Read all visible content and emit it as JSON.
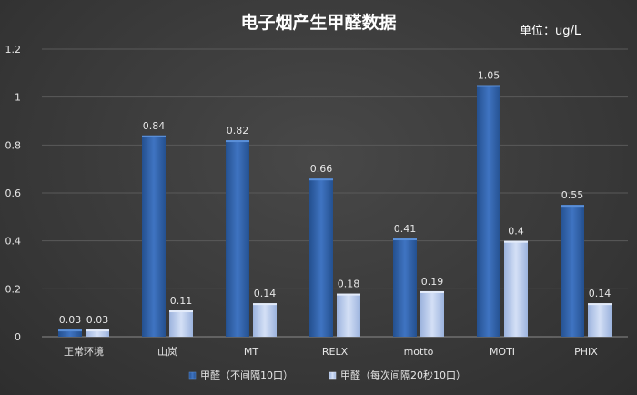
{
  "chart_data": {
    "type": "bar",
    "title": "电子烟产生甲醛数据",
    "unit_label": "单位：ug/L",
    "categories": [
      "正常环境",
      "山岚",
      "MT",
      "RELX",
      "motto",
      "MOTI",
      "PHIX"
    ],
    "series": [
      {
        "name": "甲醛（不间隔10口）",
        "values": [
          0.03,
          0.84,
          0.82,
          0.66,
          0.41,
          1.05,
          0.55
        ],
        "labels": [
          "0.03",
          "0.84",
          "0.82",
          "0.66",
          "0.41",
          "1.05",
          "0.55"
        ],
        "color": "#2f5ea8"
      },
      {
        "name": "甲醛（每次间隔20秒10口）",
        "values": [
          0.03,
          0.11,
          0.14,
          0.18,
          0.19,
          0.4,
          0.14
        ],
        "labels": [
          "0.03",
          "0.11",
          "0.14",
          "0.18",
          "0.19",
          "0.4",
          "0.14"
        ],
        "color": "#b4c8ec"
      }
    ],
    "yticks": [
      0,
      0.2,
      0.4,
      0.6,
      0.8,
      1,
      1.2
    ],
    "ytick_labels": [
      "0",
      "0.2",
      "0.4",
      "0.6",
      "0.8",
      "1",
      "1.2"
    ],
    "ylim": [
      0,
      1.2
    ],
    "grid": true,
    "legend_position": "bottom"
  }
}
